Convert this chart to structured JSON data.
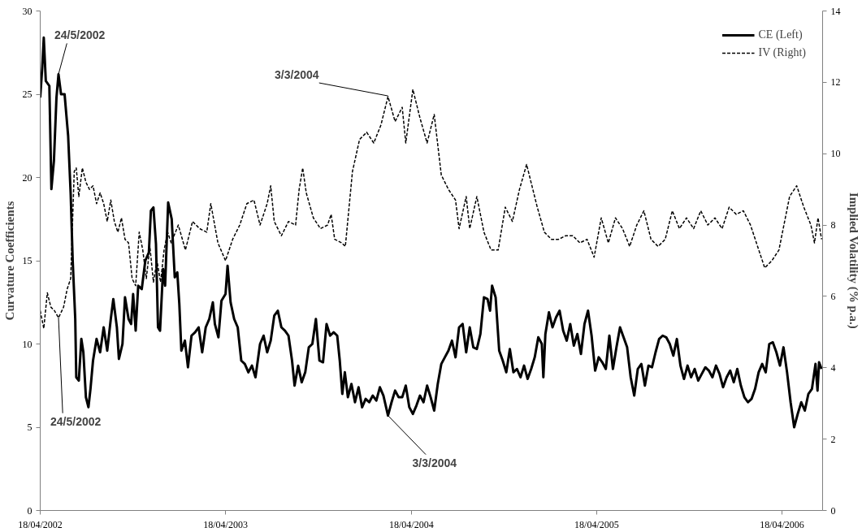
{
  "chart_data": {
    "type": "line",
    "xlabel": null,
    "ylabel": "Curvature Coefficients",
    "y2label": "Implied Volatility (% p.a.)",
    "xlim": [
      "2002-04-18",
      "2006-07-07"
    ],
    "xticks": [
      {
        "value": "2002-04-18",
        "label": "18/04/2002"
      },
      {
        "value": "2003-04-18",
        "label": "18/04/2003"
      },
      {
        "value": "2004-04-18",
        "label": "18/04/2004"
      },
      {
        "value": "2005-04-18",
        "label": "18/04/2005"
      },
      {
        "value": "2006-04-18",
        "label": "18/04/2006"
      }
    ],
    "ylim": [
      0,
      30
    ],
    "yticks": [
      0,
      5,
      10,
      15,
      20,
      25,
      30
    ],
    "y2lim": [
      0,
      14
    ],
    "y2ticks": [
      0,
      2,
      4,
      6,
      8,
      10,
      12,
      14
    ],
    "grid": false,
    "legend": "top right",
    "series": [
      {
        "name": "CE (Left)",
        "color": "#000000",
        "line_style": "solid",
        "x": [
          "2002-04-18",
          "2002-04-22",
          "2002-04-25",
          "2002-04-29",
          "2002-05-06",
          "2002-05-10",
          "2002-05-15",
          "2002-05-20",
          "2002-05-24",
          "2002-05-29",
          "2002-06-05",
          "2002-06-12",
          "2002-06-17",
          "2002-06-21",
          "2002-06-26",
          "2002-06-28",
          "2002-07-03",
          "2002-07-08",
          "2002-07-12",
          "2002-07-17",
          "2002-07-22",
          "2002-07-26",
          "2002-07-31",
          "2002-08-07",
          "2002-08-14",
          "2002-08-21",
          "2002-08-28",
          "2002-09-04",
          "2002-09-09",
          "2002-09-16",
          "2002-09-20",
          "2002-09-27",
          "2002-10-02",
          "2002-10-09",
          "2002-10-14",
          "2002-10-18",
          "2002-10-23",
          "2002-10-28",
          "2002-11-04",
          "2002-11-11",
          "2002-11-18",
          "2002-11-22",
          "2002-11-27",
          "2002-12-02",
          "2002-12-06",
          "2002-12-10",
          "2002-12-16",
          "2002-12-20",
          "2002-12-26",
          "2003-01-02",
          "2003-01-08",
          "2003-01-13",
          "2003-01-17",
          "2003-01-21",
          "2003-01-28",
          "2003-02-03",
          "2003-02-10",
          "2003-02-17",
          "2003-02-24",
          "2003-03-03",
          "2003-03-10",
          "2003-03-17",
          "2003-03-24",
          "2003-03-28",
          "2003-04-04",
          "2003-04-10",
          "2003-04-18",
          "2003-04-22",
          "2003-04-28",
          "2003-05-05",
          "2003-05-12",
          "2003-05-19",
          "2003-05-26",
          "2003-06-02",
          "2003-06-09",
          "2003-06-16",
          "2003-06-25",
          "2003-07-02",
          "2003-07-09",
          "2003-07-16",
          "2003-07-23",
          "2003-07-30",
          "2003-08-06",
          "2003-08-13",
          "2003-08-20",
          "2003-08-27",
          "2003-09-01",
          "2003-09-08",
          "2003-09-15",
          "2003-09-22",
          "2003-09-29",
          "2003-10-06",
          "2003-10-13",
          "2003-10-20",
          "2003-10-27",
          "2003-11-03",
          "2003-11-10",
          "2003-11-17",
          "2003-11-24",
          "2003-11-29",
          "2003-12-04",
          "2003-12-09",
          "2003-12-15",
          "2003-12-22",
          "2003-12-29",
          "2004-01-05",
          "2004-01-12",
          "2004-01-19",
          "2004-01-26",
          "2004-02-02",
          "2004-02-09",
          "2004-02-16",
          "2004-02-23",
          "2004-03-03",
          "2004-03-10",
          "2004-03-17",
          "2004-03-24",
          "2004-03-31",
          "2004-04-07",
          "2004-04-14",
          "2004-04-21",
          "2004-04-28",
          "2004-05-05",
          "2004-05-12",
          "2004-05-19",
          "2004-05-26",
          "2004-06-02",
          "2004-06-09",
          "2004-06-16",
          "2004-06-23",
          "2004-06-30",
          "2004-07-07",
          "2004-07-14",
          "2004-07-21",
          "2004-07-28",
          "2004-08-04",
          "2004-08-11",
          "2004-08-18",
          "2004-08-25",
          "2004-09-01",
          "2004-09-08",
          "2004-09-15",
          "2004-09-20",
          "2004-09-24",
          "2004-10-01",
          "2004-10-08",
          "2004-10-15",
          "2004-10-22",
          "2004-10-29",
          "2004-11-05",
          "2004-11-12",
          "2004-11-19",
          "2004-11-26",
          "2004-12-03",
          "2004-12-10",
          "2004-12-17",
          "2004-12-24",
          "2004-12-31",
          "2005-01-03",
          "2005-01-07",
          "2005-01-14",
          "2005-01-21",
          "2005-01-28",
          "2005-02-04",
          "2005-02-11",
          "2005-02-18",
          "2005-02-25",
          "2005-03-04",
          "2005-03-11",
          "2005-03-18",
          "2005-03-25",
          "2005-04-01",
          "2005-04-08",
          "2005-04-15",
          "2005-04-22",
          "2005-04-29",
          "2005-05-06",
          "2005-05-13",
          "2005-05-20",
          "2005-05-27",
          "2005-06-03",
          "2005-06-10",
          "2005-06-17",
          "2005-06-24",
          "2005-07-01",
          "2005-07-08",
          "2005-07-15",
          "2005-07-22",
          "2005-07-29",
          "2005-08-05",
          "2005-08-12",
          "2005-08-19",
          "2005-08-26",
          "2005-09-02",
          "2005-09-09",
          "2005-09-16",
          "2005-09-23",
          "2005-09-30",
          "2005-10-07",
          "2005-10-14",
          "2005-10-21",
          "2005-10-28",
          "2005-11-04",
          "2005-11-11",
          "2005-11-18",
          "2005-11-25",
          "2005-12-02",
          "2005-12-09",
          "2005-12-16",
          "2005-12-23",
          "2005-12-30",
          "2006-01-06",
          "2006-01-13",
          "2006-01-20",
          "2006-01-27",
          "2006-02-03",
          "2006-02-10",
          "2006-02-17",
          "2006-02-24",
          "2006-03-03",
          "2006-03-10",
          "2006-03-17",
          "2006-03-24",
          "2006-03-31",
          "2006-04-07",
          "2006-04-14",
          "2006-04-21",
          "2006-04-28",
          "2006-05-05",
          "2006-05-12",
          "2006-05-19",
          "2006-05-26",
          "2006-06-02",
          "2006-06-09",
          "2006-06-16",
          "2006-06-23",
          "2006-06-27",
          "2006-06-30",
          "2006-07-05"
        ],
        "values": [
          24.8,
          26.6,
          28.4,
          25.8,
          25.5,
          19.3,
          21,
          24.8,
          26.2,
          25,
          25,
          22.5,
          19,
          15,
          11.5,
          8,
          7.8,
          10.3,
          9.5,
          6.8,
          6.2,
          7.3,
          9,
          10.3,
          9.5,
          11,
          9.6,
          11.5,
          12.7,
          11,
          9.1,
          10,
          12.8,
          11.5,
          11.2,
          13,
          10.8,
          13.5,
          13.3,
          15,
          15.5,
          18,
          18.2,
          16,
          11,
          10.8,
          14.5,
          13.5,
          18.5,
          17.5,
          14,
          14.3,
          12.4,
          9.6,
          10.2,
          8.6,
          10.5,
          10.7,
          11,
          9.5,
          11,
          11.5,
          12.5,
          11.2,
          10.4,
          12.6,
          13,
          14.7,
          12.5,
          11.5,
          11,
          9,
          8.8,
          8.3,
          8.7,
          8,
          10,
          10.5,
          9.5,
          10.2,
          11.7,
          12,
          11,
          10.8,
          10.5,
          9,
          7.5,
          8.7,
          7.7,
          8.3,
          9.8,
          10,
          11.5,
          9,
          8.9,
          11.2,
          10.5,
          10.7,
          10.5,
          9,
          7,
          8.3,
          6.8,
          7.6,
          6.5,
          7.4,
          6.2,
          6.7,
          6.5,
          6.9,
          6.6,
          7.4,
          6.9,
          5.7,
          6.5,
          7.2,
          6.8,
          6.8,
          7.5,
          6.2,
          5.8,
          6.3,
          6.9,
          6.5,
          7.5,
          6.8,
          6,
          7.6,
          8.8,
          9.2,
          9.6,
          10.2,
          9.2,
          11,
          11.2,
          9.5,
          11,
          9.8,
          9.7,
          10.6,
          12.8,
          12.7,
          12,
          13.5,
          12.8,
          9.6,
          9,
          8.3,
          9.7,
          8.3,
          8.5,
          8,
          8.7,
          7.9,
          8.5,
          9.2,
          10.4,
          10,
          8,
          10.6,
          11.9,
          11,
          11.6,
          12,
          10.8,
          10.2,
          11.2,
          9.9,
          10.6,
          9.4,
          11.2,
          12,
          10.5,
          8.4,
          9.2,
          8.9,
          8.5,
          10.5,
          8.5,
          9.8,
          11,
          10.4,
          9.8,
          8,
          6.9,
          8.5,
          8.8,
          7.5,
          8.7,
          8.6,
          9.5,
          10.3,
          10.5,
          10.4,
          10,
          9.3,
          10.3,
          8.7,
          7.9,
          8.7,
          8,
          8.5,
          7.8,
          8.2,
          8.6,
          8.4,
          8,
          8.7,
          8.2,
          7.4,
          8,
          8.4,
          7.7,
          8.5,
          7.5,
          6.8,
          6.5,
          6.7,
          7.3,
          8.3,
          8.8,
          8.3,
          10,
          10.1,
          9.5,
          8.7,
          9.8,
          8.3,
          6.5,
          5,
          5.8,
          6.5,
          6,
          7,
          7.3,
          8.8,
          7.2,
          8.9,
          8.5
        ]
      },
      {
        "name": "IV (Right)",
        "color": "#000000",
        "line_style": "dashed",
        "axis": "y2",
        "x": [
          "2002-04-18",
          "2002-04-25",
          "2002-05-02",
          "2002-05-09",
          "2002-05-16",
          "2002-05-24",
          "2002-06-03",
          "2002-06-10",
          "2002-06-17",
          "2002-06-24",
          "2002-06-28",
          "2002-07-03",
          "2002-07-10",
          "2002-07-17",
          "2002-07-24",
          "2002-07-31",
          "2002-08-07",
          "2002-08-14",
          "2002-08-21",
          "2002-08-28",
          "2002-09-04",
          "2002-09-11",
          "2002-09-18",
          "2002-09-25",
          "2002-10-02",
          "2002-10-09",
          "2002-10-16",
          "2002-10-23",
          "2002-10-30",
          "2002-11-06",
          "2002-11-13",
          "2002-11-20",
          "2002-11-27",
          "2002-12-04",
          "2002-12-11",
          "2002-12-18",
          "2002-12-25",
          "2003-01-01",
          "2003-01-15",
          "2003-01-29",
          "2003-02-12",
          "2003-02-26",
          "2003-03-12",
          "2003-03-20",
          "2003-04-03",
          "2003-04-18",
          "2003-05-02",
          "2003-05-16",
          "2003-05-30",
          "2003-06-13",
          "2003-06-25",
          "2003-07-09",
          "2003-07-16",
          "2003-07-23",
          "2003-08-06",
          "2003-08-20",
          "2003-09-03",
          "2003-09-10",
          "2003-09-17",
          "2003-09-24",
          "2003-10-08",
          "2003-10-22",
          "2003-11-05",
          "2003-11-12",
          "2003-11-19",
          "2003-12-03",
          "2003-12-10",
          "2003-12-24",
          "2004-01-07",
          "2004-01-21",
          "2004-02-04",
          "2004-02-18",
          "2004-03-03",
          "2004-03-17",
          "2004-03-31",
          "2004-04-07",
          "2004-04-21",
          "2004-05-05",
          "2004-05-19",
          "2004-06-02",
          "2004-06-16",
          "2004-06-30",
          "2004-07-14",
          "2004-07-21",
          "2004-08-04",
          "2004-08-11",
          "2004-08-25",
          "2004-09-08",
          "2004-09-22",
          "2004-10-06",
          "2004-10-20",
          "2004-11-03",
          "2004-11-17",
          "2004-12-01",
          "2004-12-08",
          "2004-12-22",
          "2005-01-05",
          "2005-01-19",
          "2005-02-02",
          "2005-02-16",
          "2005-03-02",
          "2005-03-16",
          "2005-03-30",
          "2005-04-13",
          "2005-04-27",
          "2005-05-11",
          "2005-05-25",
          "2005-06-08",
          "2005-06-22",
          "2005-07-06",
          "2005-07-20",
          "2005-08-03",
          "2005-08-17",
          "2005-08-31",
          "2005-09-14",
          "2005-09-28",
          "2005-10-12",
          "2005-10-26",
          "2005-11-09",
          "2005-11-23",
          "2005-12-07",
          "2005-12-21",
          "2006-01-04",
          "2006-01-18",
          "2006-02-01",
          "2006-02-15",
          "2006-03-01",
          "2006-03-15",
          "2006-03-29",
          "2006-04-12",
          "2006-04-19",
          "2006-05-03",
          "2006-05-17",
          "2006-05-31",
          "2006-06-14",
          "2006-06-21",
          "2006-06-28",
          "2006-07-05"
        ],
        "values": [
          5.6,
          5.1,
          6.1,
          5.7,
          5.6,
          5.4,
          5.7,
          6.2,
          6.5,
          9.5,
          9.6,
          8.8,
          9.6,
          9.2,
          9.0,
          9.1,
          8.6,
          8.9,
          8.6,
          8.1,
          8.7,
          8.1,
          7.8,
          8.2,
          7.6,
          7.5,
          6.5,
          6.3,
          7.8,
          7.3,
          6.5,
          7.4,
          6.4,
          7.0,
          6.4,
          7.3,
          7.8,
          7.5,
          8.0,
          7.3,
          8.1,
          7.9,
          7.8,
          8.6,
          7.5,
          7.0,
          7.6,
          8.0,
          8.6,
          8.7,
          8.0,
          8.6,
          9.1,
          8.1,
          7.7,
          8.1,
          8.0,
          9.0,
          9.6,
          8.9,
          8.2,
          7.9,
          8.0,
          8.3,
          7.6,
          7.5,
          7.4,
          9.5,
          10.4,
          10.6,
          10.3,
          10.8,
          11.6,
          10.9,
          11.3,
          10.3,
          11.8,
          11.0,
          10.3,
          11.1,
          9.4,
          9.0,
          8.7,
          7.9,
          8.8,
          7.9,
          8.8,
          7.8,
          7.3,
          7.3,
          8.5,
          8.1,
          9.0,
          9.7,
          9.3,
          8.5,
          7.8,
          7.6,
          7.6,
          7.7,
          7.7,
          7.5,
          7.6,
          7.1,
          8.2,
          7.5,
          8.2,
          7.9,
          7.4,
          8.0,
          8.4,
          7.6,
          7.4,
          7.6,
          8.4,
          7.9,
          8.2,
          7.9,
          8.4,
          8.0,
          8.2,
          7.9,
          8.5,
          8.3,
          8.4,
          8.0,
          7.4,
          6.8,
          7.0,
          7.3,
          7.8,
          8.8,
          9.1,
          8.5,
          8.0,
          7.5,
          8.2,
          7.6
        ]
      }
    ],
    "annotations": [
      {
        "text": "24/5/2002",
        "x": "2002-05-24",
        "y": 26.2
      },
      {
        "text": "24/5/2002",
        "x": "2002-05-24",
        "y": 11.6
      },
      {
        "text": "3/3/2004",
        "x": "2004-03-03",
        "y": 24.9
      },
      {
        "text": "3/3/2004",
        "x": "2004-03-03",
        "y": 5.7
      }
    ]
  }
}
